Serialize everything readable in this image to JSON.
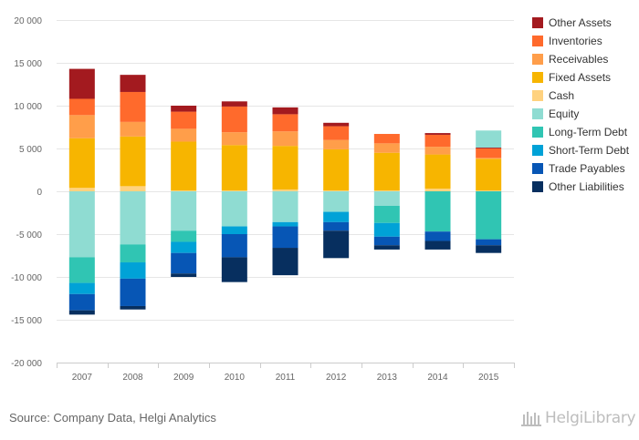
{
  "chart_data": {
    "type": "bar",
    "stacked": true,
    "categories": [
      "2007",
      "2008",
      "2009",
      "2010",
      "2011",
      "2012",
      "2013",
      "2014",
      "2015"
    ],
    "ylim": [
      -20000,
      20000
    ],
    "yticks": [
      -20000,
      -15000,
      -10000,
      -5000,
      0,
      5000,
      10000,
      15000,
      20000
    ],
    "ytick_labels": [
      "-20 000",
      "-15 000",
      "-10 000",
      "-5 000",
      "0",
      "5 000",
      "10 000",
      "15 000",
      "20 000"
    ],
    "grid": true,
    "legend_position": "right",
    "series": [
      {
        "name": "Cash",
        "color": "#ffd27f",
        "values": [
          400,
          600,
          100,
          100,
          200,
          100,
          100,
          300,
          100
        ]
      },
      {
        "name": "Fixed Assets",
        "color": "#f7b500",
        "values": [
          5800,
          5800,
          5700,
          5300,
          5100,
          4800,
          4400,
          4000,
          3700
        ]
      },
      {
        "name": "Receivables",
        "color": "#ff9e4a",
        "values": [
          2700,
          1700,
          1500,
          1500,
          1700,
          1100,
          1100,
          900,
          100
        ]
      },
      {
        "name": "Inventories",
        "color": "#ff6a2c",
        "values": [
          1900,
          3500,
          2000,
          3000,
          2000,
          1600,
          1100,
          1400,
          1100
        ]
      },
      {
        "name": "Other Assets",
        "color": "#a31a1f",
        "values": [
          3500,
          2000,
          700,
          600,
          800,
          400,
          0,
          200,
          100
        ]
      },
      {
        "name": "Equity",
        "color": "#8fdcd2",
        "values": [
          -7700,
          -6200,
          -4600,
          -4100,
          -3600,
          -2400,
          -1700,
          0,
          2000
        ]
      },
      {
        "name": "Long-Term Debt",
        "color": "#30c5b3",
        "values": [
          -3000,
          -2100,
          -1300,
          0,
          0,
          0,
          -2000,
          -4700,
          -5600
        ]
      },
      {
        "name": "Short-Term Debt",
        "color": "#00a2d7",
        "values": [
          -1300,
          -1900,
          -1300,
          -900,
          -500,
          -1200,
          -1600,
          0,
          0
        ]
      },
      {
        "name": "Trade Payables",
        "color": "#0756b5",
        "values": [
          -1900,
          -3200,
          -2400,
          -2700,
          -2500,
          -1000,
          -1000,
          -1100,
          -700
        ]
      },
      {
        "name": "Other Liabilities",
        "color": "#072f5f",
        "values": [
          -500,
          -400,
          -400,
          -2900,
          -3200,
          -3200,
          -500,
          -1000,
          -900
        ]
      }
    ],
    "legend_order": [
      "Other Assets",
      "Inventories",
      "Receivables",
      "Fixed Assets",
      "Cash",
      "Equity",
      "Long-Term Debt",
      "Short-Term Debt",
      "Trade Payables",
      "Other Liabilities"
    ]
  },
  "footer": {
    "source": "Source: Company Data, Helgi Analytics",
    "brand": "HelgiLibrary"
  }
}
